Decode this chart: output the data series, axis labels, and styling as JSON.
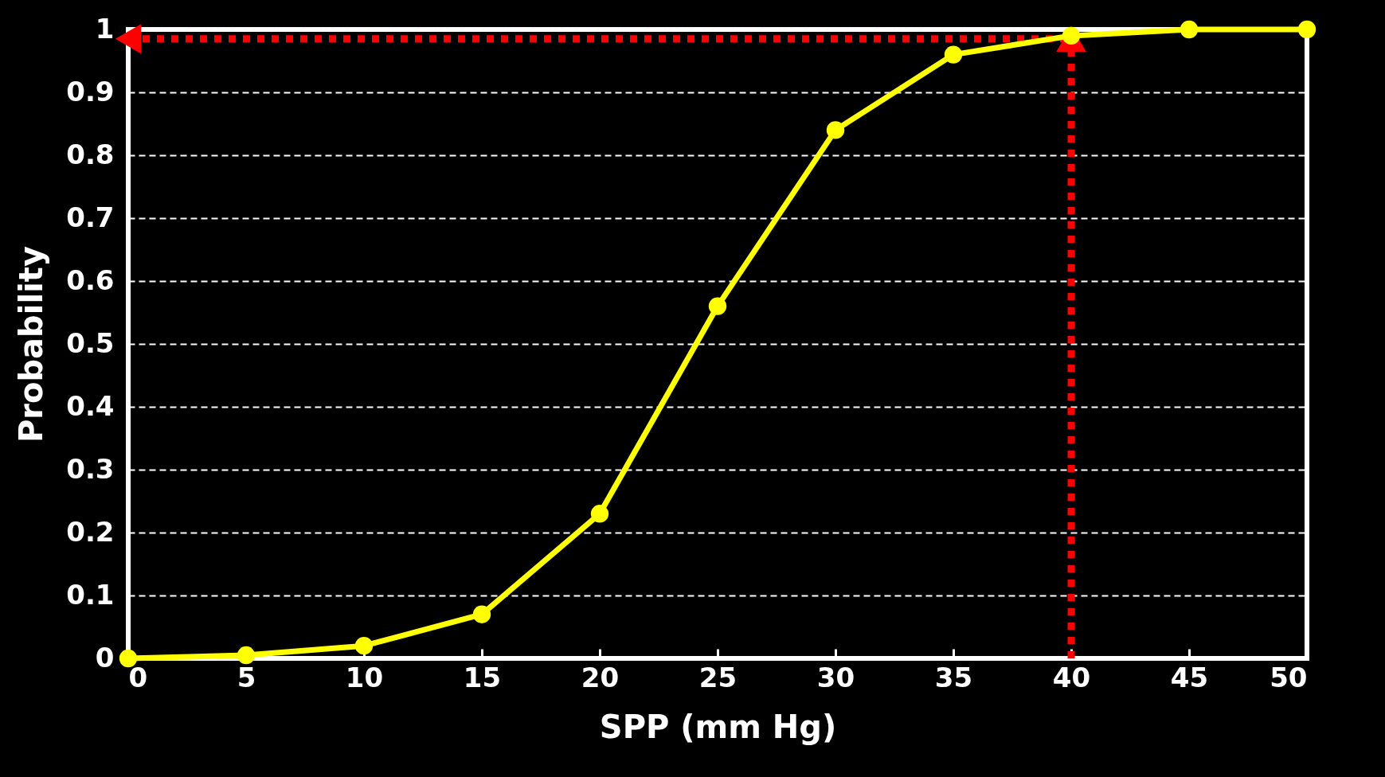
{
  "chart_data": {
    "type": "line",
    "xlabel": "SPP (mm Hg)",
    "ylabel": "Probability",
    "x": [
      0,
      5,
      10,
      15,
      20,
      25,
      30,
      35,
      40,
      45,
      50
    ],
    "series": [
      {
        "color": "#ffff00",
        "values": [
          0,
          0.005,
          0.02,
          0.07,
          0.23,
          0.56,
          0.84,
          0.96,
          0.99,
          1,
          1
        ]
      }
    ],
    "xlim": [
      0,
      50
    ],
    "ylim": [
      0,
      1
    ],
    "xticks": [
      0,
      5,
      10,
      15,
      20,
      25,
      30,
      35,
      40,
      45,
      50
    ],
    "yticks": [
      0,
      0.1,
      0.2,
      0.3,
      0.4,
      0.5,
      0.6,
      0.7,
      0.8,
      0.9,
      1
    ],
    "grid": "y",
    "marker": "circle",
    "line_style": "solid",
    "ref_lines": [
      {
        "axis": "x",
        "value": 40,
        "color": "#ff0000",
        "line_style": "dotted"
      },
      {
        "axis": "y",
        "value": 0.985,
        "color": "#ff0000",
        "line_style": "dotted"
      }
    ]
  }
}
